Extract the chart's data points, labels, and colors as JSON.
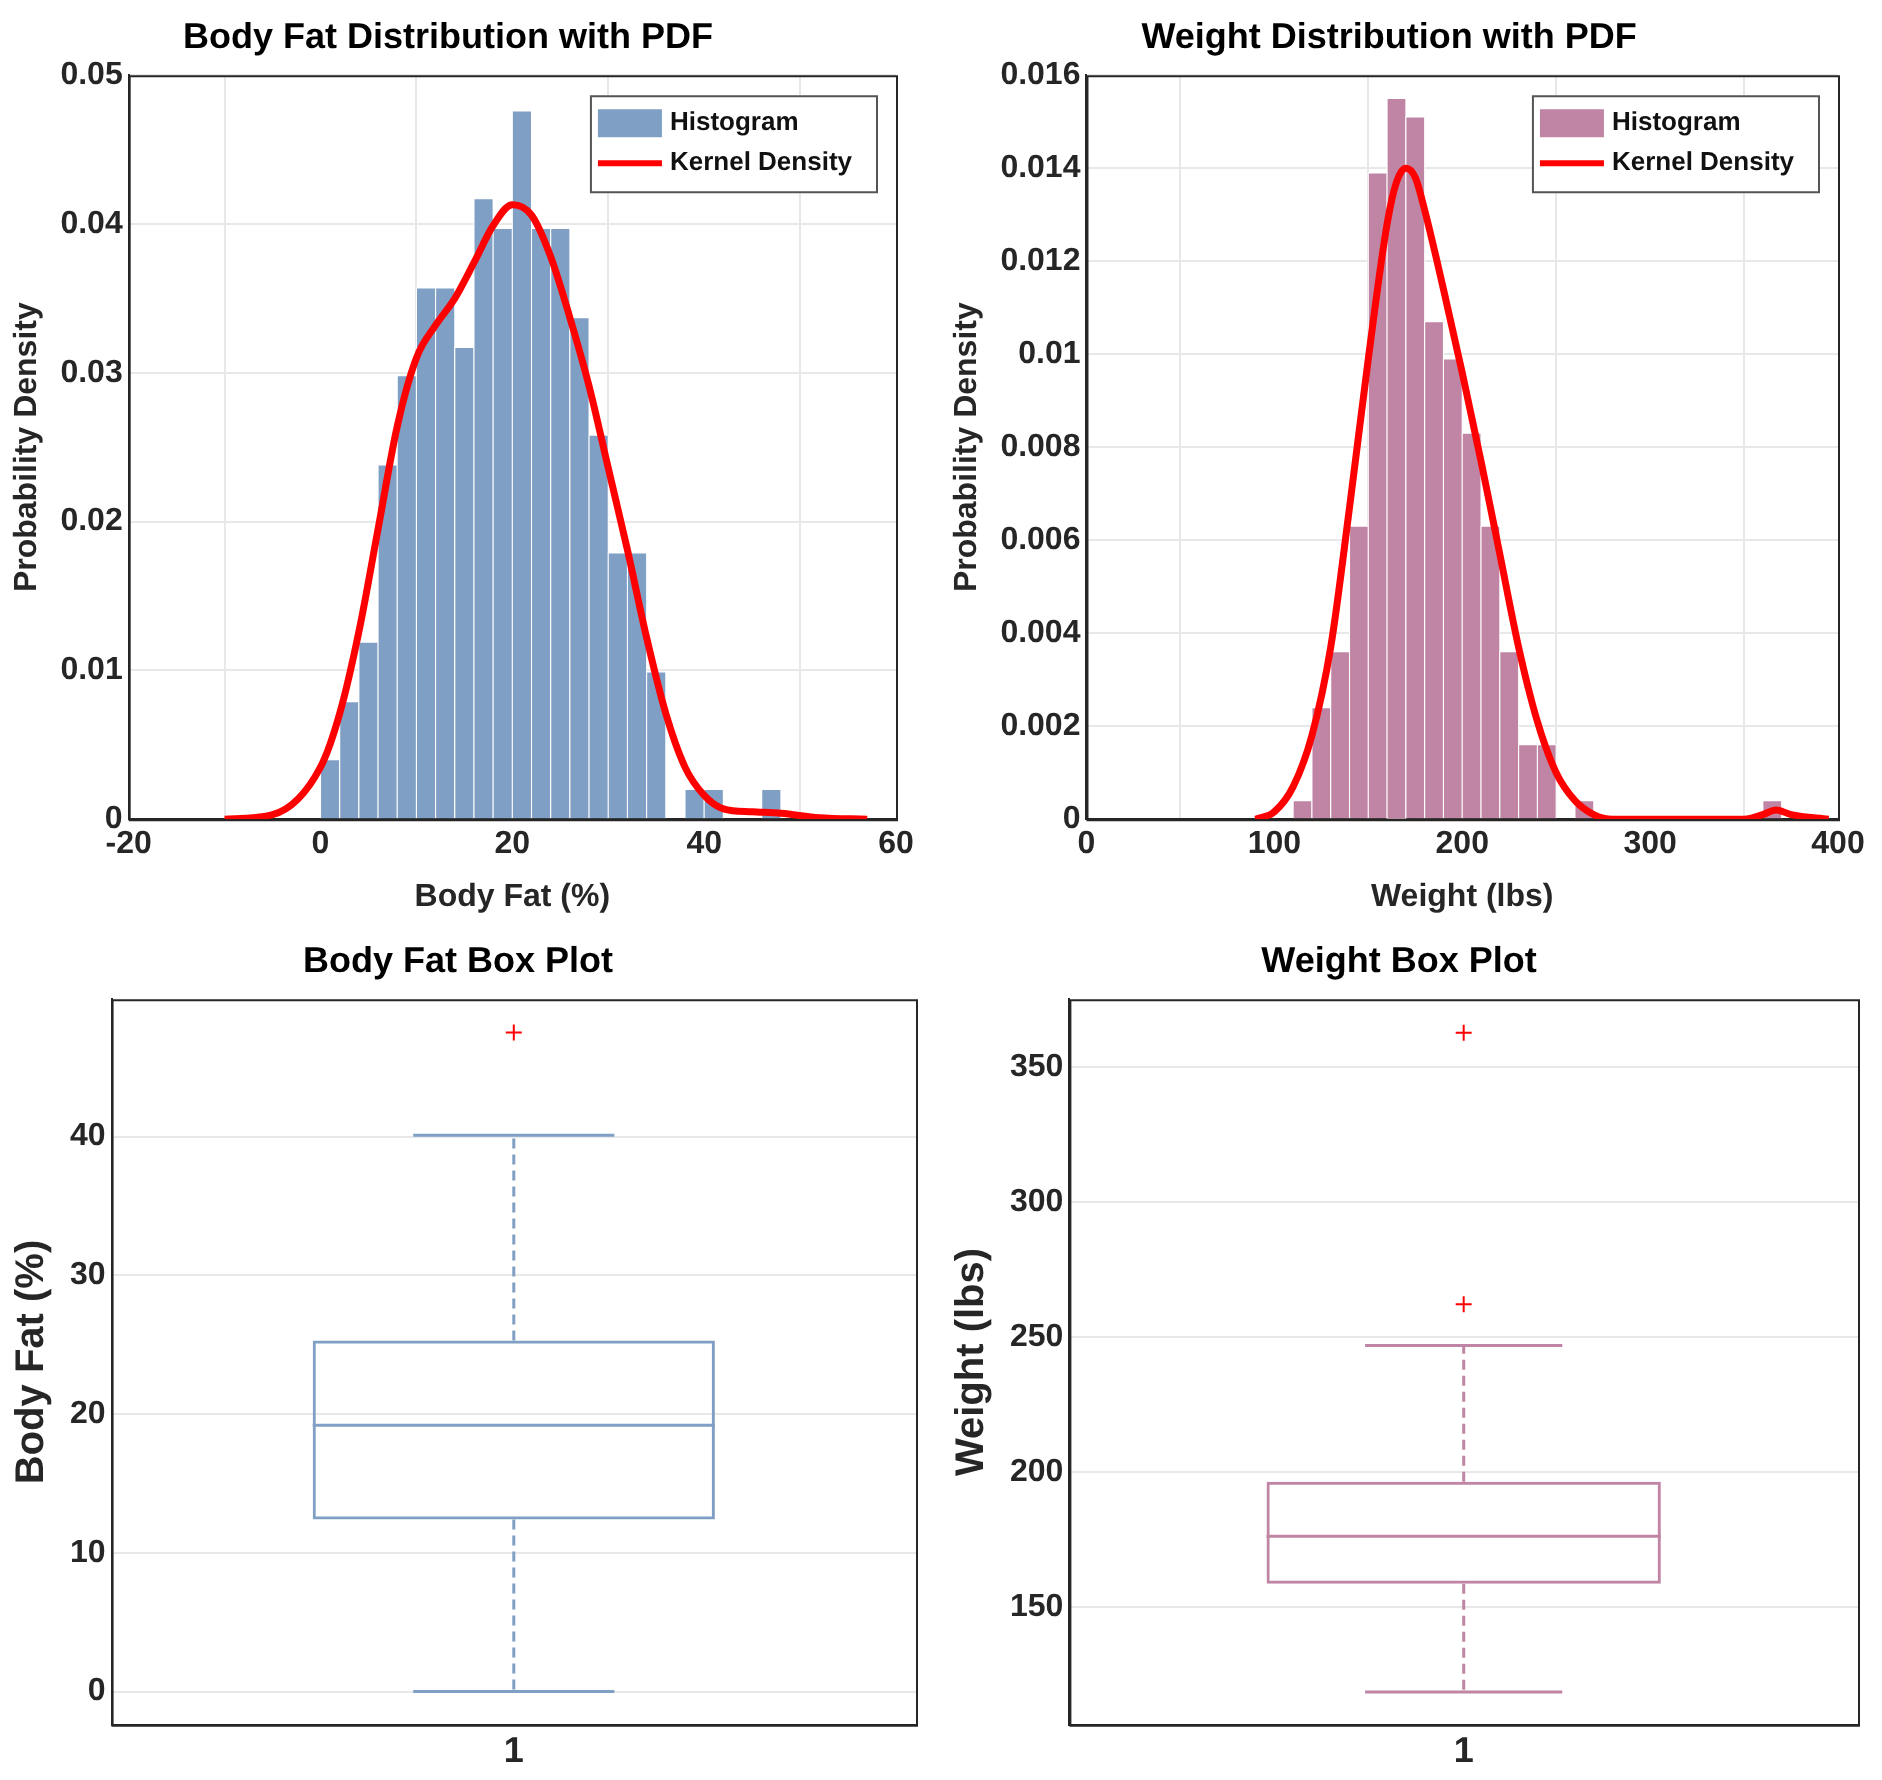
{
  "chart_data": [
    {
      "type": "histogram",
      "title": "Body Fat Distribution with PDF",
      "xlabel": "Body Fat (%)",
      "ylabel": "Probability Density",
      "xlim": [
        -20,
        60
      ],
      "xticks": [
        -20,
        0,
        20,
        40,
        60
      ],
      "ylim": [
        0,
        0.05
      ],
      "yticks": [
        0,
        0.01,
        0.02,
        0.03,
        0.04,
        0.05
      ],
      "grid": true,
      "legend": "top right",
      "series": [
        {
          "type": "histogram",
          "name": "Histogram",
          "color": "#7f9fc4",
          "bins": [
            0,
            2,
            4,
            6,
            8,
            10,
            12,
            14,
            16,
            18,
            20,
            22,
            24,
            26,
            28,
            30,
            32,
            34,
            36,
            38,
            40,
            42,
            44,
            46,
            48
          ],
          "values": [
            0.004,
            0.0079,
            0.0119,
            0.0238,
            0.0298,
            0.0357,
            0.0357,
            0.0317,
            0.0417,
            0.0397,
            0.0476,
            0.0397,
            0.0397,
            0.0337,
            0.0258,
            0.0179,
            0.0179,
            0.0099,
            0,
            0.002,
            0.002,
            0,
            0,
            0.002
          ]
        },
        {
          "type": "line",
          "name": "Kernel Density",
          "color": "#ff0000",
          "x": [
            -10,
            -5,
            0,
            2,
            4,
            6,
            8,
            10,
            12,
            14,
            16,
            18,
            20,
            22,
            24,
            26,
            28,
            30,
            32,
            34,
            36,
            38,
            40,
            42,
            45,
            48,
            52,
            57
          ],
          "values": [
            0,
            0.0003,
            0.0035,
            0.0071,
            0.0126,
            0.0195,
            0.0264,
            0.031,
            0.0332,
            0.035,
            0.0374,
            0.0399,
            0.0413,
            0.0406,
            0.0378,
            0.0337,
            0.0291,
            0.0236,
            0.0181,
            0.0122,
            0.0071,
            0.0035,
            0.0016,
            0.0007,
            0.0005,
            0.0004,
            0.0001,
            0
          ]
        }
      ]
    },
    {
      "type": "histogram",
      "title": "Weight Distribution with PDF",
      "xlabel": "Weight (lbs)",
      "ylabel": "Probability Density",
      "xlim": [
        0,
        400
      ],
      "xticks": [
        0,
        100,
        200,
        300,
        400
      ],
      "ylim": [
        0,
        0.016
      ],
      "yticks": [
        0,
        0.002,
        0.004,
        0.006,
        0.008,
        0.01,
        0.012,
        0.014,
        0.016
      ],
      "grid": true,
      "legend": "top right",
      "series": [
        {
          "type": "histogram",
          "name": "Histogram",
          "color": "#c085a4",
          "bins": [
            110,
            120,
            130,
            140,
            150,
            160,
            170,
            180,
            190,
            200,
            210,
            220,
            230,
            240,
            250,
            260,
            270,
            280,
            290,
            300,
            310,
            320,
            330,
            340,
            350,
            360,
            370
          ],
          "values": [
            0.0004,
            0.0024,
            0.0036,
            0.0063,
            0.0139,
            0.0155,
            0.0151,
            0.0107,
            0.0099,
            0.0083,
            0.0063,
            0.0036,
            0.0016,
            0.0016,
            0,
            0.0004,
            0,
            0,
            0,
            0,
            0,
            0,
            0,
            0,
            0,
            0.0004
          ]
        },
        {
          "type": "line",
          "name": "Kernel Density",
          "color": "#ff0000",
          "x": [
            90,
            100,
            110,
            120,
            130,
            140,
            150,
            160,
            165,
            170,
            175,
            180,
            190,
            200,
            210,
            220,
            230,
            240,
            250,
            260,
            270,
            280,
            350,
            360,
            367,
            375,
            395
          ],
          "values": [
            0,
            0.00016,
            0.0007,
            0.0018,
            0.0037,
            0.0067,
            0.0099,
            0.0128,
            0.0137,
            0.014,
            0.0138,
            0.0131,
            0.0114,
            0.0096,
            0.0077,
            0.0057,
            0.0037,
            0.0021,
            0.001,
            0.0004,
            0.0001,
            0,
            0,
            0.0001,
            0.0002,
            0.0001,
            0
          ]
        }
      ]
    },
    {
      "type": "box",
      "title": "Body Fat Box Plot",
      "ylabel": "Body Fat (%)",
      "categories": [
        "1"
      ],
      "ylim": [
        -2.4,
        49.9
      ],
      "yticks": [
        0,
        10,
        20,
        30,
        40
      ],
      "grid": "y",
      "color": "#7f9fc4",
      "boxes": [
        {
          "low": 0,
          "q1": 12.4,
          "median": 19.2,
          "q3": 25.3,
          "high": 40.1,
          "outliers": [
            47.5
          ]
        }
      ]
    },
    {
      "type": "box",
      "title": "Weight Box Plot",
      "ylabel": "Weight (lbs)",
      "categories": [
        "1"
      ],
      "ylim": [
        106.5,
        375
      ],
      "yticks": [
        150,
        200,
        250,
        300,
        350
      ],
      "grid": "y",
      "color": "#c085a4",
      "boxes": [
        {
          "low": 118.6,
          "q1": 158.7,
          "median": 176.3,
          "q3": 196.4,
          "high": 246.9,
          "outliers": [
            262.1,
            362.6
          ]
        }
      ]
    }
  ]
}
